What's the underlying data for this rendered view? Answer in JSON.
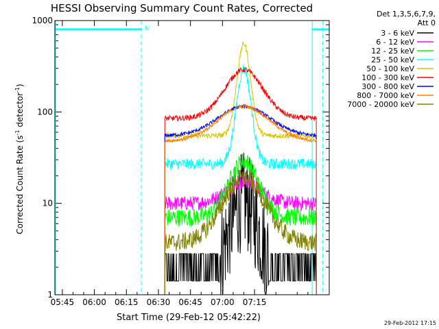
{
  "chart_data": {
    "type": "line",
    "title": "HESSI Observing Summary Count Rates, Corrected",
    "xlabel": "Start Time (29-Feb-12 05:42:22)",
    "ylabel_main": "Corrected Count Rate (s",
    "ylabel_sup1": "-1",
    "ylabel_mid": " detector",
    "ylabel_sup2": "-1",
    "ylabel_end": ")",
    "y_scale": "log",
    "ylim": [
      1,
      1000
    ],
    "xlim_minutes": [
      -48.5,
      80
    ],
    "x_ticks": [
      {
        "label": "05:45",
        "min": -45
      },
      {
        "label": "06:00",
        "min": -30
      },
      {
        "label": "06:15",
        "min": -15
      },
      {
        "label": "06:30",
        "min": 0
      },
      {
        "label": "06:45",
        "min": 15
      },
      {
        "label": "07:00",
        "min": 30
      },
      {
        "label": "07:15",
        "min": 45
      }
    ],
    "y_ticks": [
      {
        "label": "1",
        "value": 1
      },
      {
        "label": "10",
        "value": 10
      },
      {
        "label": "100",
        "value": 100
      },
      {
        "label": "1000",
        "value": 1000
      }
    ],
    "legend_header": [
      "Det 1,3,5,6,7,9,",
      "Att 0"
    ],
    "legend_position": "right",
    "timestamp": "29-Feb-2012 17:15",
    "night_marker": "N",
    "data_start_min": 3,
    "data_end_min": 74,
    "peak_min": 40,
    "series": [
      {
        "name": "3 - 6 keV",
        "color": "#000000",
        "base": 1.6,
        "peak": 10.5,
        "width": 7,
        "noise": 0.55
      },
      {
        "name": "6 - 12 keV",
        "color": "#ff00ff",
        "base": 10,
        "peak": 17,
        "width": 8,
        "noise": 0.08
      },
      {
        "name": "12 - 25 keV",
        "color": "#00ff00",
        "base": 7,
        "peak": 29,
        "width": 7,
        "noise": 0.1
      },
      {
        "name": "25 - 50 keV",
        "color": "#00ffff",
        "base": 27,
        "peak": 300,
        "width": 3.5,
        "noise": 0.06
      },
      {
        "name": "50 - 100 keV",
        "color": "#d4c400",
        "base": 55,
        "peak": 560,
        "width": 3.2,
        "noise": 0.03
      },
      {
        "name": "100 - 300 keV",
        "color": "#ff0000",
        "base": 85,
        "peak": 290,
        "width": 9,
        "noise": 0.03
      },
      {
        "name": "300 - 800 keV",
        "color": "#0000ff",
        "base": 55,
        "peak": 115,
        "width": 12,
        "noise": 0.02
      },
      {
        "name": "800 - 7000 keV",
        "color": "#ff8000",
        "base": 48,
        "peak": 115,
        "width": 12,
        "noise": 0.02
      },
      {
        "name": "7000 - 20000 keV",
        "color": "#808000",
        "base": 3.7,
        "peak": 19,
        "width": 10,
        "noise": 0.1
      }
    ],
    "saa_segments": [
      {
        "start": -48.5,
        "end": -8,
        "level": 800
      },
      {
        "start": 72,
        "end": 80,
        "level": 800
      }
    ],
    "saa_color": "#00ffff"
  }
}
